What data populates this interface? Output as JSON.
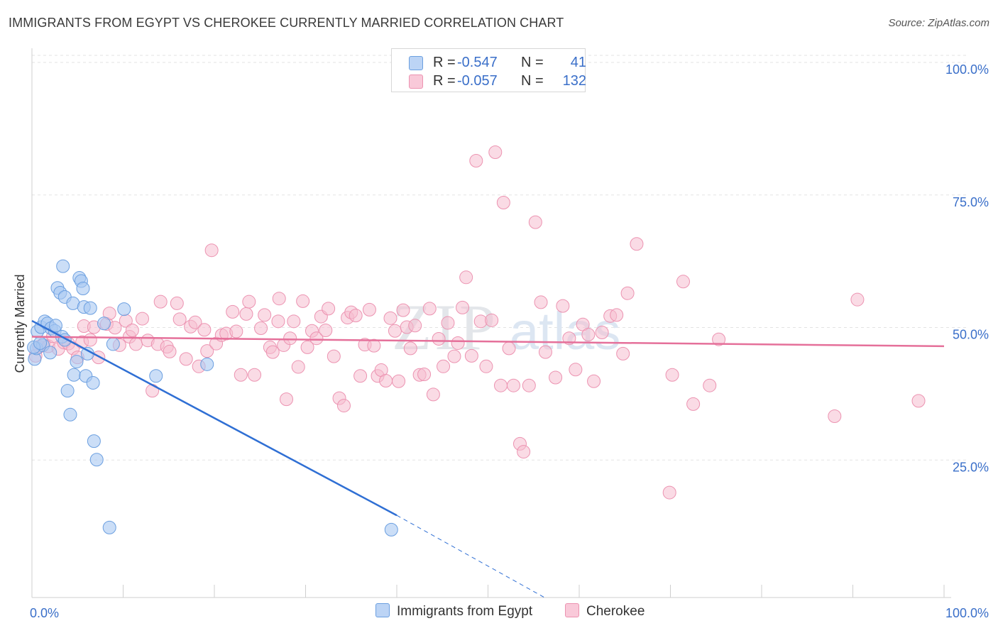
{
  "title": "IMMIGRANTS FROM EGYPT VS CHEROKEE CURRENTLY MARRIED CORRELATION CHART",
  "source": "Source: ZipAtlas.com",
  "watermark": {
    "part1": "ZIP",
    "part2": "atlas"
  },
  "legend": {
    "series": [
      {
        "r_label": "R =",
        "r_value": "-0.547",
        "n_label": "N =",
        "n_value": "41"
      },
      {
        "r_label": "R =",
        "r_value": "-0.057",
        "n_label": "N =",
        "n_value": "132"
      }
    ]
  },
  "colors": {
    "egypt_fill": "#a9c8f2",
    "egypt_stroke": "#6b9fe0",
    "egypt_line": "#2f6fd4",
    "cherokee_fill": "#f6bed0",
    "cherokee_stroke": "#ec93b1",
    "cherokee_line": "#e5709a",
    "tick_label": "#3a6fc9"
  },
  "chart_data": {
    "type": "scatter",
    "title": "IMMIGRANTS FROM EGYPT VS CHEROKEE CURRENTLY MARRIED CORRELATION CHART",
    "xlabel": "",
    "ylabel": "Currently Married",
    "xlim": [
      0,
      100
    ],
    "ylim": [
      0,
      100
    ],
    "x_tick_labels": [
      "0.0%",
      "100.0%"
    ],
    "y_tick_labels": [
      "100.0%",
      "75.0%",
      "50.0%",
      "25.0%"
    ],
    "y_ticks": [
      100,
      75,
      50,
      25
    ],
    "grid": true,
    "legend_position": "bottom",
    "series": [
      {
        "name": "Immigrants from Egypt",
        "r": -0.547,
        "n": 41,
        "trend": {
          "x": [
            0,
            40
          ],
          "y": [
            52.2,
            15.5
          ],
          "dashed_to": [
            56.2,
            0
          ]
        },
        "points": [
          [
            0.3,
            45
          ],
          [
            0.5,
            47
          ],
          [
            0.6,
            50.2
          ],
          [
            1.0,
            51.0
          ],
          [
            1.2,
            47.6
          ],
          [
            1.4,
            52.1
          ],
          [
            1.7,
            51.7
          ],
          [
            2.0,
            46.2
          ],
          [
            2.1,
            50.8
          ],
          [
            2.5,
            50.3
          ],
          [
            2.6,
            51.3
          ],
          [
            2.8,
            58.4
          ],
          [
            3.1,
            57.5
          ],
          [
            3.3,
            49.2
          ],
          [
            3.4,
            62.5
          ],
          [
            3.6,
            48.6
          ],
          [
            3.6,
            56.7
          ],
          [
            3.9,
            39.0
          ],
          [
            4.2,
            34.5
          ],
          [
            4.5,
            55.5
          ],
          [
            4.6,
            42.0
          ],
          [
            4.9,
            44.5
          ],
          [
            5.2,
            60.3
          ],
          [
            5.4,
            59.7
          ],
          [
            5.6,
            58.3
          ],
          [
            5.7,
            54.8
          ],
          [
            5.9,
            41.8
          ],
          [
            6.1,
            46.0
          ],
          [
            6.4,
            54.6
          ],
          [
            6.7,
            40.5
          ],
          [
            6.8,
            29.5
          ],
          [
            7.1,
            26.0
          ],
          [
            7.9,
            51.7
          ],
          [
            8.5,
            13.2
          ],
          [
            8.9,
            47.8
          ],
          [
            10.1,
            54.4
          ],
          [
            13.6,
            41.8
          ],
          [
            19.2,
            44.0
          ],
          [
            39.4,
            12.8
          ],
          [
            0.2,
            47.2
          ],
          [
            0.9,
            48.0
          ]
        ]
      },
      {
        "name": "Cherokee",
        "r": -0.057,
        "n": 132,
        "trend": {
          "x": [
            0,
            100
          ],
          "y": [
            49.2,
            47.4
          ]
        },
        "points": [
          [
            0.4,
            45.6
          ],
          [
            0.8,
            47.3
          ],
          [
            1.3,
            47.9
          ],
          [
            1.8,
            47.4
          ],
          [
            2.3,
            49.3
          ],
          [
            2.9,
            46.9
          ],
          [
            3.5,
            48.1
          ],
          [
            4.0,
            47.9
          ],
          [
            4.5,
            47.0
          ],
          [
            5.0,
            45.3
          ],
          [
            5.5,
            48.2
          ],
          [
            5.7,
            51.2
          ],
          [
            6.4,
            48.6
          ],
          [
            6.8,
            51.0
          ],
          [
            7.3,
            45.3
          ],
          [
            8.2,
            51.6
          ],
          [
            8.5,
            53.6
          ],
          [
            9.1,
            50.9
          ],
          [
            9.6,
            47.6
          ],
          [
            10.3,
            52.2
          ],
          [
            10.7,
            49.2
          ],
          [
            11.0,
            50.4
          ],
          [
            11.4,
            47.8
          ],
          [
            12.1,
            52.6
          ],
          [
            12.7,
            48.5
          ],
          [
            13.2,
            39.0
          ],
          [
            13.8,
            47.8
          ],
          [
            14.1,
            55.8
          ],
          [
            14.8,
            47.3
          ],
          [
            15.1,
            46.4
          ],
          [
            15.9,
            55.5
          ],
          [
            16.2,
            52.5
          ],
          [
            16.9,
            45.0
          ],
          [
            17.4,
            51.1
          ],
          [
            17.9,
            51.9
          ],
          [
            18.3,
            43.6
          ],
          [
            18.9,
            50.5
          ],
          [
            19.2,
            46.5
          ],
          [
            19.7,
            65.5
          ],
          [
            20.2,
            47.9
          ],
          [
            20.8,
            49.5
          ],
          [
            21.3,
            49.8
          ],
          [
            22.0,
            53.9
          ],
          [
            22.4,
            50.2
          ],
          [
            22.9,
            42.0
          ],
          [
            23.5,
            53.5
          ],
          [
            23.8,
            55.8
          ],
          [
            24.4,
            42.0
          ],
          [
            25.1,
            50.8
          ],
          [
            25.5,
            53.3
          ],
          [
            26.1,
            47.2
          ],
          [
            26.4,
            46.3
          ],
          [
            27.0,
            52.1
          ],
          [
            27.1,
            56.4
          ],
          [
            27.6,
            47.6
          ],
          [
            27.9,
            37.4
          ],
          [
            28.3,
            48.9
          ],
          [
            28.7,
            52.1
          ],
          [
            29.2,
            43.5
          ],
          [
            29.7,
            55.9
          ],
          [
            30.2,
            47.2
          ],
          [
            30.7,
            50.3
          ],
          [
            31.2,
            48.9
          ],
          [
            31.7,
            53.0
          ],
          [
            32.2,
            50.4
          ],
          [
            32.5,
            54.5
          ],
          [
            33.1,
            45.5
          ],
          [
            33.7,
            37.6
          ],
          [
            34.2,
            36.2
          ],
          [
            34.6,
            52.8
          ],
          [
            35.0,
            53.8
          ],
          [
            35.5,
            53.2
          ],
          [
            36.0,
            41.8
          ],
          [
            36.5,
            47.7
          ],
          [
            37.0,
            54.3
          ],
          [
            37.5,
            47.5
          ],
          [
            37.9,
            41.8
          ],
          [
            38.3,
            42.9
          ],
          [
            38.8,
            40.9
          ],
          [
            39.3,
            52.7
          ],
          [
            39.8,
            50.3
          ],
          [
            40.2,
            40.8
          ],
          [
            40.7,
            54.2
          ],
          [
            41.1,
            51.0
          ],
          [
            41.5,
            47.0
          ],
          [
            42.0,
            51.3
          ],
          [
            42.5,
            42.0
          ],
          [
            43.0,
            42.1
          ],
          [
            43.6,
            54.5
          ],
          [
            44.0,
            38.3
          ],
          [
            44.6,
            48.8
          ],
          [
            45.1,
            43.6
          ],
          [
            45.6,
            51.8
          ],
          [
            46.3,
            45.5
          ],
          [
            46.7,
            48.0
          ],
          [
            47.2,
            54.7
          ],
          [
            47.6,
            60.4
          ],
          [
            48.2,
            45.6
          ],
          [
            48.7,
            82.4
          ],
          [
            49.2,
            52.1
          ],
          [
            49.8,
            43.6
          ],
          [
            50.4,
            52.3
          ],
          [
            50.8,
            84.0
          ],
          [
            51.4,
            40.0
          ],
          [
            51.7,
            74.5
          ],
          [
            52.3,
            47.0
          ],
          [
            52.8,
            40.0
          ],
          [
            53.5,
            29.0
          ],
          [
            53.9,
            27.5
          ],
          [
            54.5,
            40.0
          ],
          [
            55.2,
            70.8
          ],
          [
            55.8,
            55.7
          ],
          [
            56.3,
            46.3
          ],
          [
            57.4,
            41.5
          ],
          [
            58.2,
            55.0
          ],
          [
            58.9,
            48.9
          ],
          [
            59.6,
            43.0
          ],
          [
            60.4,
            51.5
          ],
          [
            61.0,
            49.6
          ],
          [
            61.6,
            40.8
          ],
          [
            62.5,
            50.0
          ],
          [
            63.4,
            53.1
          ],
          [
            64.1,
            53.3
          ],
          [
            64.8,
            46.0
          ],
          [
            65.3,
            57.4
          ],
          [
            66.3,
            66.7
          ],
          [
            69.9,
            19.8
          ],
          [
            70.2,
            42.0
          ],
          [
            71.4,
            59.6
          ],
          [
            72.5,
            36.5
          ],
          [
            74.3,
            40.0
          ],
          [
            75.3,
            48.7
          ],
          [
            88.0,
            34.2
          ],
          [
            90.5,
            56.2
          ],
          [
            97.2,
            37.1
          ]
        ]
      }
    ],
    "legend_labels": [
      "Immigrants from Egypt",
      "Cherokee"
    ]
  }
}
